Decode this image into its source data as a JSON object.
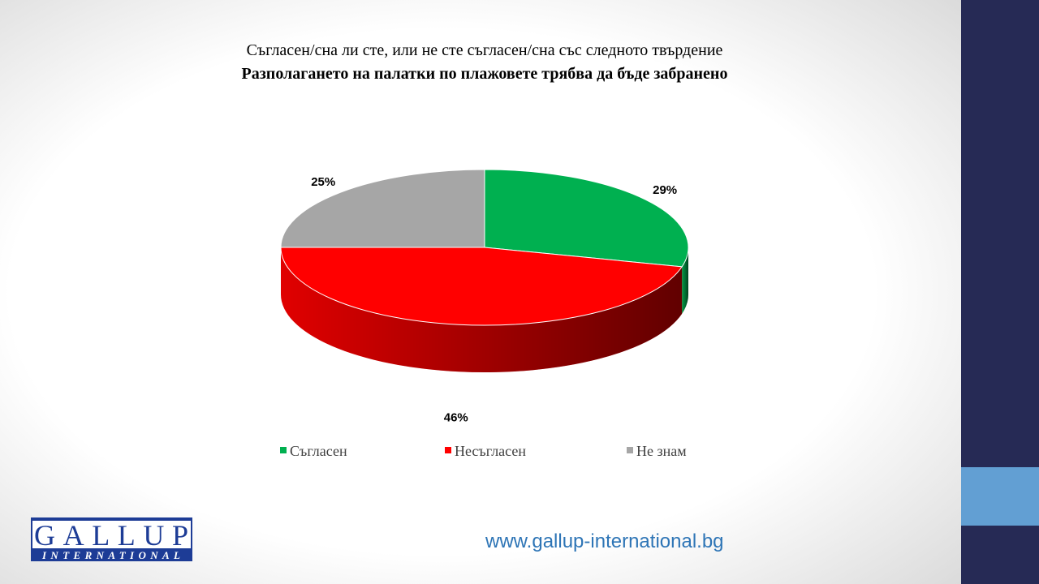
{
  "chart_data": {
    "type": "pie",
    "title": "Съгласен/сна ли сте, или не сте съгласен/сна със следното твърдение",
    "subtitle": "Разполагането на палатки по плажовете трябва да бъде забранено",
    "categories": [
      "Съгласен",
      "Несъгласен",
      "Не знам"
    ],
    "values": [
      29,
      46,
      25
    ],
    "value_labels": [
      "29%",
      "46%",
      "25%"
    ],
    "colors": [
      "#00b050",
      "#ff0000",
      "#a6a6a6"
    ],
    "legend": "bottom"
  },
  "footer": {
    "logo": "GALLUP",
    "logo_sub": "INTERNATIONAL",
    "url": "www.gallup-international.bg"
  }
}
